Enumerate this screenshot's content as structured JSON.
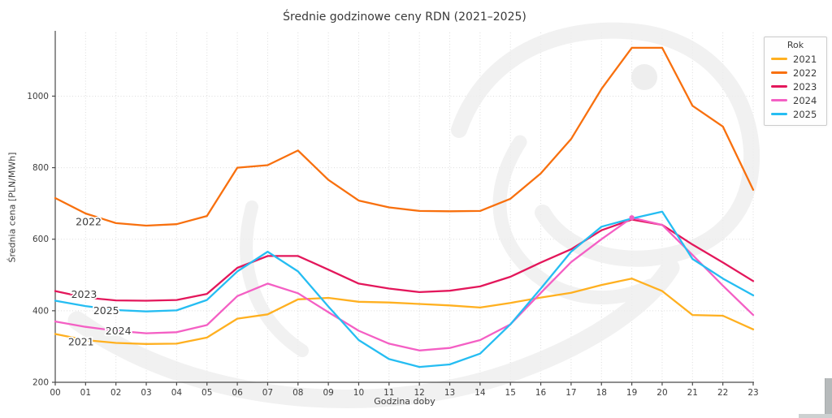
{
  "title": "Średnie godzinowe ceny RDN (2021–2025)",
  "x_axis_label": "Godzina doby",
  "y_axis_label": "Średnia cena [PLN/MWh]",
  "legend": {
    "title": "Rok"
  },
  "chart_data": {
    "type": "line",
    "x_tick_labels": [
      "00",
      "01",
      "02",
      "03",
      "04",
      "05",
      "06",
      "07",
      "08",
      "09",
      "10",
      "11",
      "12",
      "13",
      "14",
      "15",
      "16",
      "17",
      "18",
      "19",
      "20",
      "21",
      "22",
      "23"
    ],
    "y_ticks": [
      200,
      400,
      600,
      800,
      1000
    ],
    "ylim": [
      200,
      1178
    ],
    "grid": true,
    "legend_position": "outside-right-top",
    "title": "Średnie godzinowe ceny RDN (2021–2025)",
    "xlabel": "Godzina doby",
    "ylabel": "Średnia cena [PLN/MWh]",
    "series": [
      {
        "name": "2021",
        "color": "#FFB020",
        "values": [
          335,
          318,
          310,
          307,
          308,
          325,
          378,
          390,
          432,
          436,
          425,
          423,
          419,
          415,
          409,
          422,
          437,
          450,
          472,
          490,
          455,
          388,
          386,
          348
        ]
      },
      {
        "name": "2022",
        "color": "#F8700E",
        "values": [
          715,
          672,
          645,
          638,
          642,
          665,
          800,
          807,
          848,
          766,
          708,
          689,
          679,
          678,
          679,
          713,
          784,
          880,
          1020,
          1135,
          1135,
          973,
          915,
          738
        ]
      },
      {
        "name": "2023",
        "color": "#E3175B",
        "values": [
          455,
          437,
          429,
          428,
          430,
          447,
          520,
          553,
          553,
          515,
          476,
          462,
          452,
          456,
          468,
          495,
          535,
          572,
          625,
          655,
          640,
          585,
          535,
          483
        ]
      },
      {
        "name": "2024",
        "color": "#F45FC4",
        "values": [
          370,
          355,
          344,
          337,
          340,
          360,
          441,
          476,
          449,
          396,
          344,
          308,
          289,
          296,
          318,
          362,
          450,
          536,
          600,
          660,
          640,
          556,
          470,
          388
        ]
      },
      {
        "name": "2025",
        "color": "#25BDF2",
        "values": [
          428,
          413,
          402,
          398,
          401,
          430,
          510,
          565,
          510,
          412,
          318,
          265,
          243,
          250,
          280,
          362,
          462,
          565,
          635,
          658,
          677,
          545,
          490,
          443
        ]
      }
    ],
    "annotations": [
      {
        "text": "2022",
        "x": 1.1,
        "y": 649
      },
      {
        "text": "2023",
        "x": 0.95,
        "y": 446
      },
      {
        "text": "2025",
        "x": 1.68,
        "y": 401
      },
      {
        "text": "2024",
        "x": 2.08,
        "y": 344
      },
      {
        "text": "2021",
        "x": 0.85,
        "y": 313
      }
    ],
    "marker": {
      "series": "2024",
      "x": 19,
      "y": 660
    }
  }
}
